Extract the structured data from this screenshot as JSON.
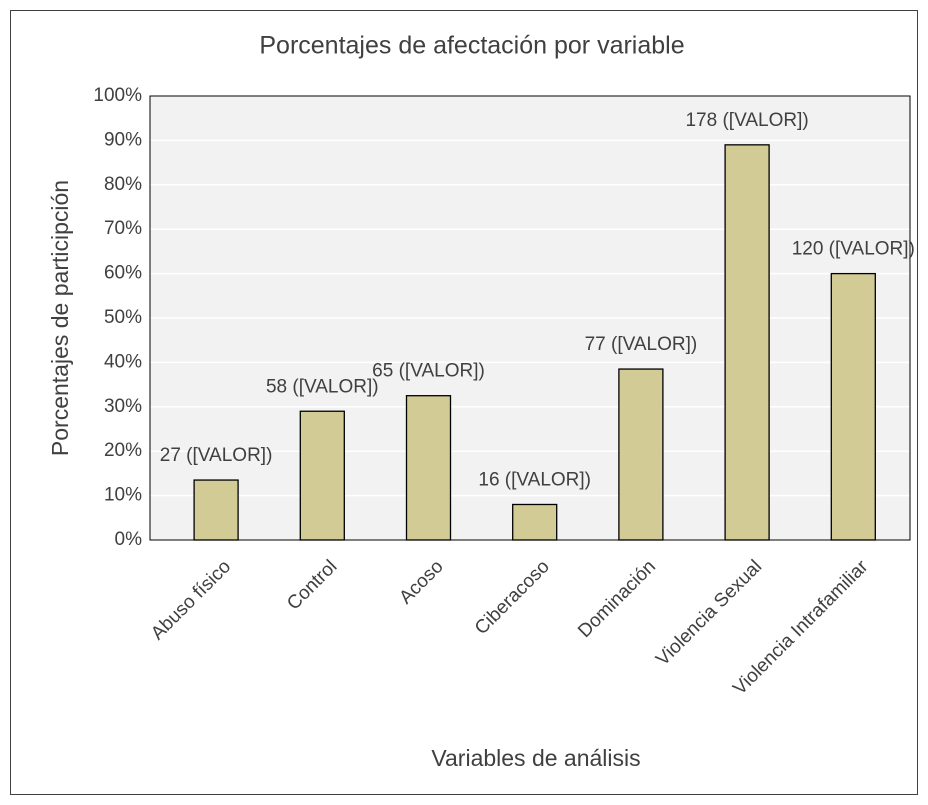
{
  "chart_data": {
    "type": "bar",
    "title": "Porcentajes de afectación por variable",
    "x_label": "Variables de análisis",
    "y_label": "Porcentajes de participción",
    "categories": [
      "Abuso físico",
      "Control",
      "Acoso",
      "Ciberacoso",
      "Dominación",
      "Violencia Sexual",
      "Violencia Intrafamiliar"
    ],
    "values": [
      13.5,
      29,
      32.5,
      8,
      38.5,
      89,
      60
    ],
    "data_labels": [
      "27 ([VALOR])",
      "58 ([VALOR])",
      "65 ([VALOR])",
      "16 ([VALOR])",
      "77 ([VALOR])",
      "178 ([VALOR])",
      "120 ([VALOR])"
    ],
    "color": "#d3cb96",
    "ylim": [
      0,
      100
    ],
    "yticks": [
      {
        "value": 0,
        "label": "0%"
      },
      {
        "value": 10,
        "label": "10%"
      },
      {
        "value": 20,
        "label": "20%"
      },
      {
        "value": 30,
        "label": "30%"
      },
      {
        "value": 40,
        "label": "40%"
      },
      {
        "value": 50,
        "label": "50%"
      },
      {
        "value": 60,
        "label": "60%"
      },
      {
        "value": 70,
        "label": "70%"
      },
      {
        "value": 80,
        "label": "80%"
      },
      {
        "value": 90,
        "label": "90%"
      },
      {
        "value": 100,
        "label": "100%"
      }
    ],
    "grid": true
  }
}
